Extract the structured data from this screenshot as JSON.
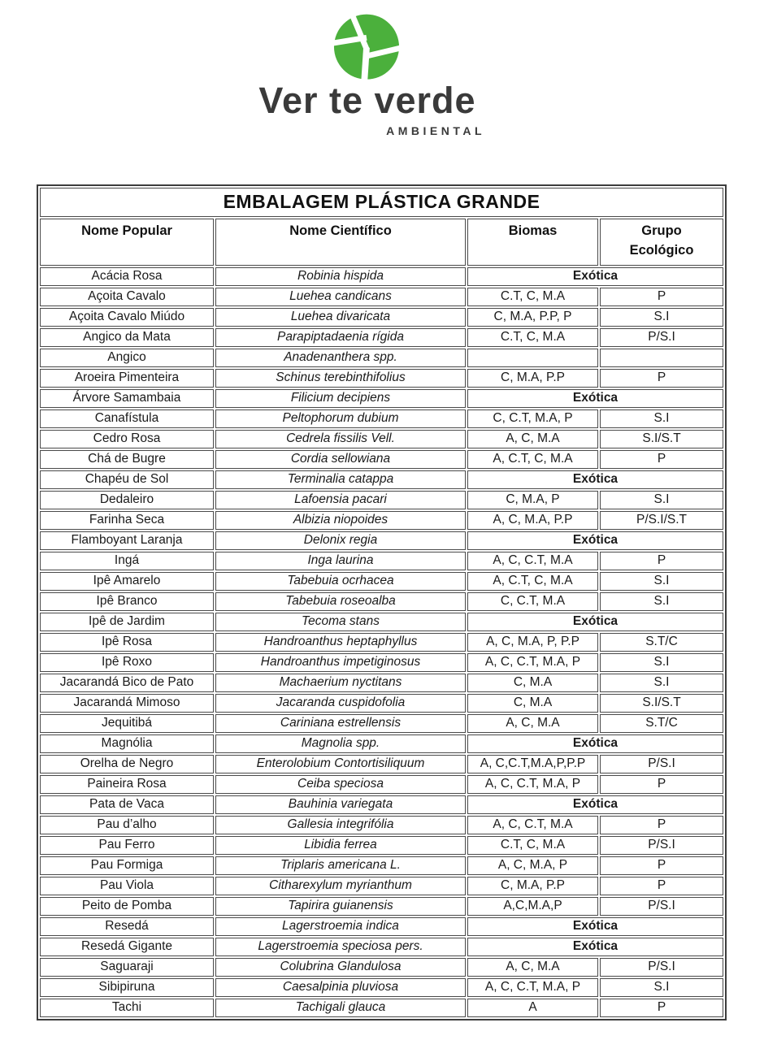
{
  "logo": {
    "brand": "Ver te verde",
    "tagline": "AMBIENTAL",
    "icon_color": "#4BB03C"
  },
  "table": {
    "title": "EMBALAGEM PLÁSTICA GRANDE",
    "columns": [
      {
        "lines": [
          "Nome Popular"
        ]
      },
      {
        "lines": [
          "Nome Científico"
        ]
      },
      {
        "lines": [
          "Biomas"
        ]
      },
      {
        "lines": [
          "Grupo",
          "Ecológico"
        ]
      }
    ],
    "exotic_label": "Exótica",
    "rows": [
      {
        "popular": "Acácia Rosa",
        "cientifico": "Robinia hispida",
        "exotica": true
      },
      {
        "popular": "Açoita Cavalo",
        "cientifico": "Luehea candicans",
        "biomas": "C.T, C, M.A",
        "grupo": "P"
      },
      {
        "popular": "Açoita Cavalo Miúdo",
        "cientifico": "Luehea divaricata",
        "biomas": "C, M.A, P.P, P",
        "grupo": "S.I"
      },
      {
        "popular": "Angico da Mata",
        "cientifico": "Parapiptadaenia rígida",
        "biomas": "C.T, C, M.A",
        "grupo": "P/S.I"
      },
      {
        "popular": "Angico",
        "cientifico": "Anadenanthera spp.",
        "biomas": "",
        "grupo": ""
      },
      {
        "popular": "Aroeira Pimenteira",
        "cientifico": "Schinus terebinthifolius",
        "biomas": "C, M.A, P.P",
        "grupo": "P"
      },
      {
        "popular": "Árvore Samambaia",
        "cientifico": "Filicium decipiens",
        "exotica": true
      },
      {
        "popular": "Canafístula",
        "cientifico": "Peltophorum dubium",
        "biomas": "C, C.T, M.A, P",
        "grupo": "S.I"
      },
      {
        "popular": "Cedro Rosa",
        "cientifico": "Cedrela fissilis Vell.",
        "biomas": "A, C, M.A",
        "grupo": "S.I/S.T"
      },
      {
        "popular": "Chá de Bugre",
        "cientifico": "Cordia sellowiana",
        "biomas": "A, C.T, C, M.A",
        "grupo": "P"
      },
      {
        "popular": "Chapéu de Sol",
        "cientifico": "Terminalia catappa",
        "exotica": true
      },
      {
        "popular": "Dedaleiro",
        "cientifico": "Lafoensia pacari",
        "biomas": "C, M.A, P",
        "grupo": "S.I"
      },
      {
        "popular": "Farinha Seca",
        "cientifico": "Albizia niopoides",
        "biomas": "A, C, M.A, P.P",
        "grupo": "P/S.I/S.T"
      },
      {
        "popular": "Flamboyant Laranja",
        "cientifico": "Delonix regia",
        "exotica": true
      },
      {
        "popular": "Ingá",
        "cientifico": "Inga laurina",
        "biomas": "A, C, C.T, M.A",
        "grupo": "P"
      },
      {
        "popular": "Ipê Amarelo",
        "cientifico": "Tabebuia ocrhacea",
        "biomas": "A, C.T, C, M.A",
        "grupo": "S.I"
      },
      {
        "popular": "Ipê Branco",
        "cientifico": "Tabebuia roseoalba",
        "biomas": "C, C.T, M.A",
        "grupo": "S.I"
      },
      {
        "popular": "Ipê de Jardim",
        "cientifico": "Tecoma stans",
        "exotica": true
      },
      {
        "popular": "Ipê Rosa",
        "cientifico": "Handroanthus heptaphyllus",
        "biomas": "A, C, M.A, P, P.P",
        "grupo": "S.T/C"
      },
      {
        "popular": "Ipê Roxo",
        "cientifico": "Handroanthus impetiginosus",
        "biomas": "A, C, C.T, M.A, P",
        "grupo": "S.I"
      },
      {
        "popular": "Jacarandá Bico de Pato",
        "cientifico": "Machaerium nyctitans",
        "biomas": "C, M.A",
        "grupo": "S.I"
      },
      {
        "popular": "Jacarandá Mimoso",
        "cientifico": "Jacaranda cuspidofolia",
        "biomas": "C, M.A",
        "grupo": "S.I/S.T"
      },
      {
        "popular": "Jequitibá",
        "cientifico": "Cariniana estrellensis",
        "biomas": "A, C, M.A",
        "grupo": "S.T/C"
      },
      {
        "popular": "Magnólia",
        "cientifico": "Magnolia spp.",
        "exotica": true
      },
      {
        "popular": "Orelha de Negro",
        "cientifico": "Enterolobium Contortisiliquum",
        "biomas": "A, C,C.T,M.A,P,P.P",
        "grupo": "P/S.I"
      },
      {
        "popular": "Paineira Rosa",
        "cientifico": "Ceiba speciosa",
        "biomas": "A, C, C.T, M.A, P",
        "grupo": "P"
      },
      {
        "popular": "Pata de Vaca",
        "cientifico": "Bauhinia variegata",
        "exotica": true
      },
      {
        "popular": "Pau d’alho",
        "cientifico": "Gallesia integrifólia",
        "biomas": "A, C, C.T, M.A",
        "grupo": "P"
      },
      {
        "popular": "Pau Ferro",
        "cientifico": "Libidia ferrea",
        "biomas": "C.T, C, M.A",
        "grupo": "P/S.I"
      },
      {
        "popular": "Pau Formiga",
        "cientifico": "Triplaris americana L.",
        "biomas": "A, C, M.A, P",
        "grupo": "P"
      },
      {
        "popular": "Pau Viola",
        "cientifico": "Citharexylum myrianthum",
        "biomas": "C, M.A, P.P",
        "grupo": "P"
      },
      {
        "popular": "Peito de Pomba",
        "cientifico": "Tapirira guianensis",
        "biomas": "A,C,M.A,P",
        "grupo": "P/S.I"
      },
      {
        "popular": "Resedá",
        "cientifico": "Lagerstroemia indica",
        "exotica": true
      },
      {
        "popular": "Resedá Gigante",
        "cientifico": "Lagerstroemia speciosa pers.",
        "exotica": true
      },
      {
        "popular": "Saguaraji",
        "cientifico": "Colubrina Glandulosa",
        "biomas": "A, C, M.A",
        "grupo": "P/S.I"
      },
      {
        "popular": "Sibipiruna",
        "cientifico": "Caesalpinia pluviosa",
        "biomas": "A, C, C.T, M.A, P",
        "grupo": "S.I"
      },
      {
        "popular": "Tachi",
        "cientifico": "Tachigali glauca",
        "biomas": "A",
        "grupo": "P"
      }
    ]
  }
}
